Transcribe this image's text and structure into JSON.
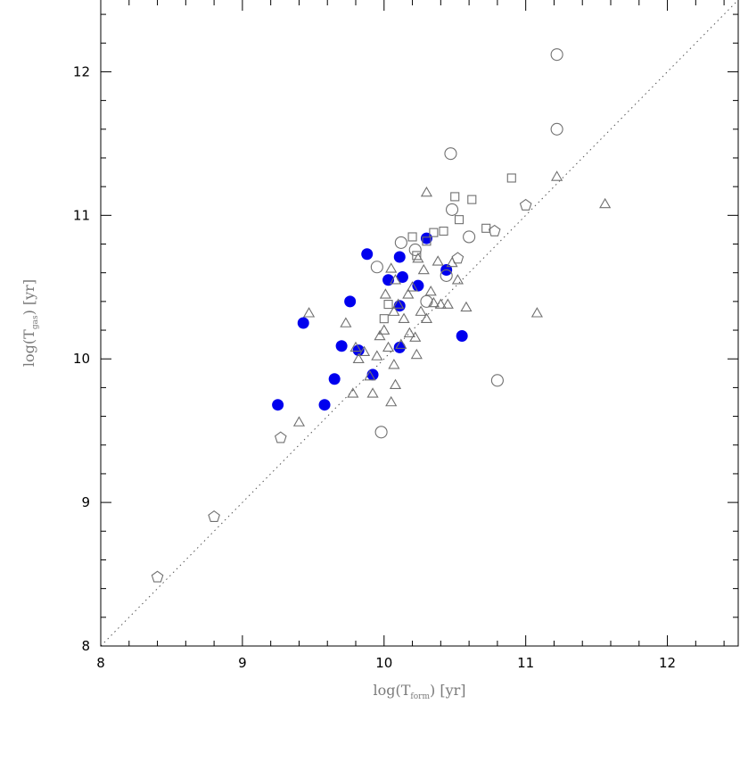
{
  "chart_data": {
    "type": "scatter",
    "xlabel": {
      "main": "log(T",
      "sub": "form",
      "rest": ") [yr]"
    },
    "ylabel": {
      "main": "log(T",
      "sub": "gas",
      "rest": ") [yr]"
    },
    "xlim": [
      8,
      12.5
    ],
    "ylim": [
      8,
      12.5
    ],
    "x_ticks": [
      "8",
      "9",
      "10",
      "11",
      "12"
    ],
    "y_ticks": [
      "8",
      "9",
      "10",
      "11",
      "12"
    ],
    "reference_line": {
      "style": "dotted",
      "from": [
        8,
        8
      ],
      "to": [
        12.5,
        12.5
      ]
    },
    "colors": {
      "filled": "#0000ee",
      "open": "#707070",
      "frame": "#000000"
    },
    "series": [
      {
        "marker": "filled-circle",
        "points": [
          [
            9.25,
            9.68
          ],
          [
            9.43,
            10.25
          ],
          [
            9.58,
            9.68
          ],
          [
            9.65,
            9.86
          ],
          [
            9.7,
            10.09
          ],
          [
            9.76,
            10.4
          ],
          [
            9.82,
            10.06
          ],
          [
            9.88,
            10.73
          ],
          [
            9.92,
            9.89
          ],
          [
            10.03,
            10.55
          ],
          [
            10.11,
            10.37
          ],
          [
            10.11,
            10.71
          ],
          [
            10.11,
            10.08
          ],
          [
            10.13,
            10.57
          ],
          [
            10.24,
            10.51
          ],
          [
            10.3,
            10.84
          ],
          [
            10.44,
            10.62
          ],
          [
            10.55,
            10.16
          ]
        ]
      },
      {
        "marker": "open-triangle",
        "points": [
          [
            9.4,
            9.56
          ],
          [
            9.47,
            10.32
          ],
          [
            9.73,
            10.25
          ],
          [
            9.78,
            9.76
          ],
          [
            9.8,
            10.08
          ],
          [
            9.82,
            10.0
          ],
          [
            9.86,
            10.05
          ],
          [
            9.9,
            9.88
          ],
          [
            9.92,
            9.76
          ],
          [
            9.95,
            10.02
          ],
          [
            9.97,
            10.16
          ],
          [
            10.0,
            10.2
          ],
          [
            10.01,
            10.45
          ],
          [
            10.03,
            10.08
          ],
          [
            10.05,
            10.63
          ],
          [
            10.05,
            9.7
          ],
          [
            10.07,
            9.96
          ],
          [
            10.07,
            10.33
          ],
          [
            10.08,
            10.55
          ],
          [
            10.08,
            9.82
          ],
          [
            10.1,
            10.38
          ],
          [
            10.12,
            10.1
          ],
          [
            10.14,
            10.28
          ],
          [
            10.17,
            10.45
          ],
          [
            10.18,
            10.18
          ],
          [
            10.2,
            10.5
          ],
          [
            10.22,
            10.15
          ],
          [
            10.23,
            10.03
          ],
          [
            10.24,
            10.7
          ],
          [
            10.26,
            10.33
          ],
          [
            10.28,
            10.62
          ],
          [
            10.3,
            10.28
          ],
          [
            10.33,
            10.47
          ],
          [
            10.35,
            10.39
          ],
          [
            10.38,
            10.68
          ],
          [
            10.4,
            10.38
          ],
          [
            10.45,
            10.38
          ],
          [
            10.48,
            10.67
          ],
          [
            10.52,
            10.55
          ],
          [
            10.58,
            10.36
          ],
          [
            10.3,
            11.16
          ],
          [
            11.08,
            10.32
          ],
          [
            11.22,
            11.27
          ],
          [
            11.56,
            11.08
          ]
        ]
      },
      {
        "marker": "open-circle",
        "points": [
          [
            9.98,
            9.49
          ],
          [
            10.12,
            10.81
          ],
          [
            10.22,
            10.76
          ],
          [
            10.3,
            10.4
          ],
          [
            10.44,
            10.58
          ],
          [
            10.47,
            11.43
          ],
          [
            10.48,
            11.04
          ],
          [
            10.6,
            10.85
          ],
          [
            10.8,
            9.85
          ],
          [
            9.95,
            10.64
          ],
          [
            11.22,
            12.12
          ],
          [
            11.22,
            11.6
          ]
        ]
      },
      {
        "marker": "open-square",
        "points": [
          [
            10.0,
            10.28
          ],
          [
            10.03,
            10.38
          ],
          [
            10.2,
            10.85
          ],
          [
            10.23,
            10.72
          ],
          [
            10.3,
            10.82
          ],
          [
            10.35,
            10.88
          ],
          [
            10.42,
            10.89
          ],
          [
            10.5,
            11.13
          ],
          [
            10.53,
            10.97
          ],
          [
            10.62,
            11.11
          ],
          [
            10.72,
            10.91
          ],
          [
            10.9,
            11.26
          ]
        ]
      },
      {
        "marker": "open-pentagon",
        "points": [
          [
            8.4,
            8.48
          ],
          [
            8.8,
            8.9
          ],
          [
            9.27,
            9.45
          ],
          [
            10.52,
            10.7
          ],
          [
            10.78,
            10.89
          ],
          [
            11.0,
            11.07
          ]
        ]
      }
    ]
  }
}
